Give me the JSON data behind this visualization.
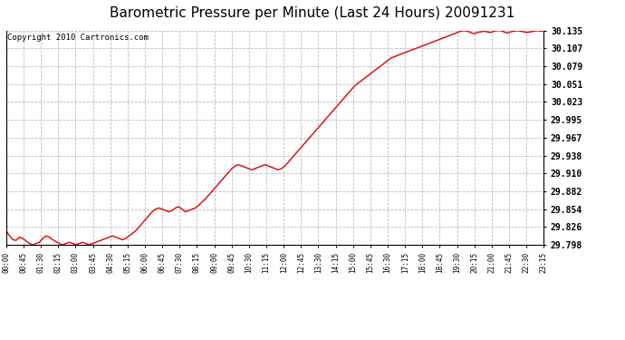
{
  "title": "Barometric Pressure per Minute (Last 24 Hours) 20091231",
  "copyright": "Copyright 2010 Cartronics.com",
  "line_color": "#dd0000",
  "background_color": "#ffffff",
  "plot_bg_color": "#ffffff",
  "grid_color": "#bbbbbb",
  "title_fontsize": 11,
  "copyright_fontsize": 6.5,
  "ytick_labels": [
    29.798,
    29.826,
    29.854,
    29.882,
    29.91,
    29.938,
    29.967,
    29.995,
    30.023,
    30.051,
    30.079,
    30.107,
    30.135
  ],
  "ylim": [
    29.798,
    30.135
  ],
  "xtick_labels": [
    "00:00",
    "00:45",
    "01:30",
    "02:15",
    "03:00",
    "03:45",
    "04:30",
    "05:15",
    "06:00",
    "06:45",
    "07:30",
    "08:15",
    "09:00",
    "09:45",
    "10:30",
    "11:15",
    "12:00",
    "12:45",
    "13:30",
    "14:15",
    "15:00",
    "15:45",
    "16:30",
    "17:15",
    "18:00",
    "18:45",
    "19:30",
    "20:15",
    "21:00",
    "21:45",
    "22:30",
    "23:15"
  ],
  "pressure_data": [
    29.82,
    29.812,
    29.806,
    29.805,
    29.81,
    29.808,
    29.804,
    29.8,
    29.798,
    29.8,
    29.802,
    29.808,
    29.812,
    29.81,
    29.806,
    29.803,
    29.8,
    29.798,
    29.8,
    29.802,
    29.8,
    29.798,
    29.8,
    29.802,
    29.8,
    29.798,
    29.8,
    29.802,
    29.804,
    29.806,
    29.808,
    29.81,
    29.812,
    29.81,
    29.808,
    29.806,
    29.808,
    29.812,
    29.816,
    29.82,
    29.826,
    29.832,
    29.838,
    29.844,
    29.85,
    29.854,
    29.856,
    29.854,
    29.852,
    29.85,
    29.852,
    29.856,
    29.858,
    29.854,
    29.85,
    29.852,
    29.854,
    29.856,
    29.86,
    29.865,
    29.87,
    29.876,
    29.882,
    29.888,
    29.894,
    29.9,
    29.906,
    29.912,
    29.918,
    29.922,
    29.924,
    29.922,
    29.92,
    29.918,
    29.916,
    29.918,
    29.92,
    29.922,
    29.924,
    29.922,
    29.92,
    29.918,
    29.916,
    29.918,
    29.922,
    29.928,
    29.934,
    29.94,
    29.946,
    29.952,
    29.958,
    29.964,
    29.97,
    29.976,
    29.982,
    29.988,
    29.994,
    30.0,
    30.006,
    30.012,
    30.018,
    30.024,
    30.03,
    30.036,
    30.042,
    30.048,
    30.052,
    30.056,
    30.06,
    30.064,
    30.068,
    30.072,
    30.076,
    30.08,
    30.084,
    30.088,
    30.092,
    30.094,
    30.096,
    30.098,
    30.1,
    30.102,
    30.104,
    30.106,
    30.108,
    30.11,
    30.112,
    30.114,
    30.116,
    30.118,
    30.12,
    30.122,
    30.124,
    30.126,
    30.128,
    30.13,
    30.132,
    30.134,
    30.135,
    30.134,
    30.132,
    30.13,
    30.132,
    30.133,
    30.134,
    30.133,
    30.132,
    30.134,
    30.135,
    30.135,
    30.133,
    30.131,
    30.133,
    30.134,
    30.135,
    30.134,
    30.133,
    30.132,
    30.133,
    30.134,
    30.135,
    30.134,
    30.135
  ]
}
